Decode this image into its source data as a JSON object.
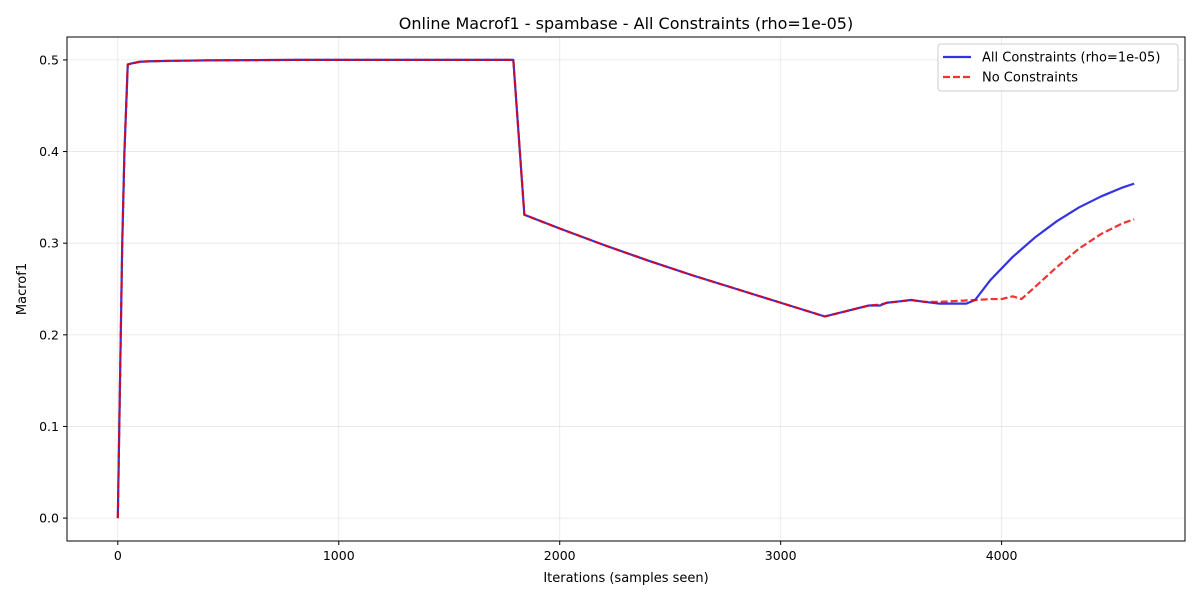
{
  "chart_data": {
    "type": "line",
    "title": "Online Macrof1 - spambase - All Constraints (rho=1e-05)",
    "xlabel": "Iterations (samples seen)",
    "ylabel": "Macrof1",
    "xlim": [
      -230,
      4830
    ],
    "ylim": [
      -0.025,
      0.525
    ],
    "xticks": [
      0,
      1000,
      2000,
      3000,
      4000
    ],
    "yticks": [
      0.0,
      0.1,
      0.2,
      0.3,
      0.4,
      0.5
    ],
    "xtick_labels": [
      "0",
      "1000",
      "2000",
      "3000",
      "4000"
    ],
    "ytick_labels": [
      "0.0",
      "0.1",
      "0.2",
      "0.3",
      "0.4",
      "0.5"
    ],
    "grid": true,
    "legend_position": "top-right",
    "series": [
      {
        "name": "All Constraints (rho=1e-05)",
        "color": "#0000dd",
        "style": "solid",
        "x": [
          0,
          10,
          20,
          30,
          45,
          60,
          100,
          150,
          250,
          400,
          800,
          1200,
          1600,
          1790,
          1840,
          2000,
          2200,
          2400,
          2600,
          2800,
          3000,
          3200,
          3400,
          3450,
          3480,
          3520,
          3590,
          3650,
          3720,
          3800,
          3840,
          3880,
          3950,
          4050,
          4150,
          4250,
          4350,
          4450,
          4550,
          4600
        ],
        "y": [
          0.0,
          0.15,
          0.3,
          0.4,
          0.495,
          0.496,
          0.498,
          0.4985,
          0.499,
          0.4995,
          0.5,
          0.5,
          0.5,
          0.5,
          0.331,
          0.316,
          0.298,
          0.281,
          0.265,
          0.25,
          0.235,
          0.22,
          0.232,
          0.232,
          0.235,
          0.236,
          0.238,
          0.236,
          0.234,
          0.234,
          0.234,
          0.238,
          0.26,
          0.285,
          0.306,
          0.324,
          0.339,
          0.351,
          0.361,
          0.365
        ]
      },
      {
        "name": "No Constraints",
        "color": "#ee0000",
        "style": "dashed",
        "x": [
          0,
          10,
          20,
          30,
          45,
          60,
          100,
          150,
          250,
          400,
          800,
          1200,
          1600,
          1790,
          1840,
          2000,
          2200,
          2400,
          2600,
          2800,
          3000,
          3200,
          3400,
          3450,
          3480,
          3520,
          3590,
          3650,
          3720,
          3800,
          3880,
          3950,
          4000,
          4050,
          4090,
          4150,
          4250,
          4350,
          4450,
          4550,
          4600
        ],
        "y": [
          0.0,
          0.15,
          0.3,
          0.4,
          0.495,
          0.496,
          0.498,
          0.4985,
          0.499,
          0.4995,
          0.5,
          0.5,
          0.5,
          0.5,
          0.331,
          0.316,
          0.298,
          0.281,
          0.265,
          0.25,
          0.235,
          0.22,
          0.232,
          0.233,
          0.235,
          0.236,
          0.238,
          0.236,
          0.236,
          0.237,
          0.238,
          0.239,
          0.239,
          0.242,
          0.239,
          0.252,
          0.274,
          0.294,
          0.31,
          0.322,
          0.326
        ]
      }
    ]
  }
}
